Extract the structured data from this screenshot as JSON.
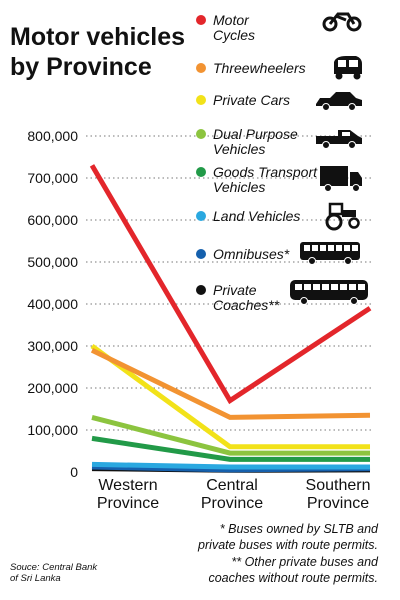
{
  "chart_data": {
    "type": "line",
    "title_lines": [
      "Motor vehicles",
      "by Province"
    ],
    "categories_lines": [
      [
        "Western",
        "Province"
      ],
      [
        "Central",
        "Province"
      ],
      [
        "Southern",
        "Province"
      ]
    ],
    "categories": [
      "Western Province",
      "Central Province",
      "Southern Province"
    ],
    "y_ticks": [
      "0",
      "100,000",
      "200,000",
      "300,000",
      "400,000",
      "500,000",
      "600,000",
      "700,000",
      "800,000"
    ],
    "ylim": [
      0,
      800000
    ],
    "grid": "dotted horizontal",
    "legend_position": "top-right",
    "series": [
      {
        "name_lines": [
          "Motor",
          "Cycles"
        ],
        "name": "Motor Cycles",
        "color": "#e3262b",
        "icon": "motorcycle-icon",
        "values": [
          730000,
          170000,
          390000
        ]
      },
      {
        "name_lines": [
          "Threewheelers"
        ],
        "name": "Threewheelers",
        "color": "#f29332",
        "icon": "threewheeler-icon",
        "values": [
          290000,
          130000,
          135000
        ]
      },
      {
        "name_lines": [
          "Private Cars"
        ],
        "name": "Private Cars",
        "color": "#f2e219",
        "icon": "car-icon",
        "values": [
          300000,
          60000,
          60000
        ]
      },
      {
        "name_lines": [
          "Dual Purpose",
          "Vehicles"
        ],
        "name": "Dual Purpose Vehicles",
        "color": "#8cc43f",
        "icon": "pickup-truck-icon",
        "values": [
          130000,
          45000,
          45000
        ]
      },
      {
        "name_lines": [
          "Goods Transport",
          "Vehicles"
        ],
        "name": "Goods Transport Vehicles",
        "color": "#229a48",
        "icon": "lorry-icon",
        "values": [
          80000,
          30000,
          30000
        ]
      },
      {
        "name_lines": [
          "Land Vehicles"
        ],
        "name": "Land Vehicles",
        "color": "#2aa8e0",
        "icon": "tractor-icon",
        "values": [
          18000,
          12000,
          12000
        ]
      },
      {
        "name_lines": [
          "Omnibuses*"
        ],
        "name": "Omnibuses*",
        "color": "#1560ad",
        "icon": "bus-icon",
        "values": [
          12000,
          5000,
          8000
        ]
      },
      {
        "name_lines": [
          "Private",
          "Coaches**"
        ],
        "name": "Private Coaches**",
        "color": "#111111",
        "icon": "coach-icon",
        "values": [
          8000,
          4000,
          5000
        ]
      }
    ],
    "annotations": [
      "* Buses owned by SLTB and",
      "private buses with route permits.",
      "** Other private buses and",
      "coaches without route permits."
    ],
    "source_lines": [
      "Souce: Central Bank",
      "of Sri Lanka"
    ]
  }
}
